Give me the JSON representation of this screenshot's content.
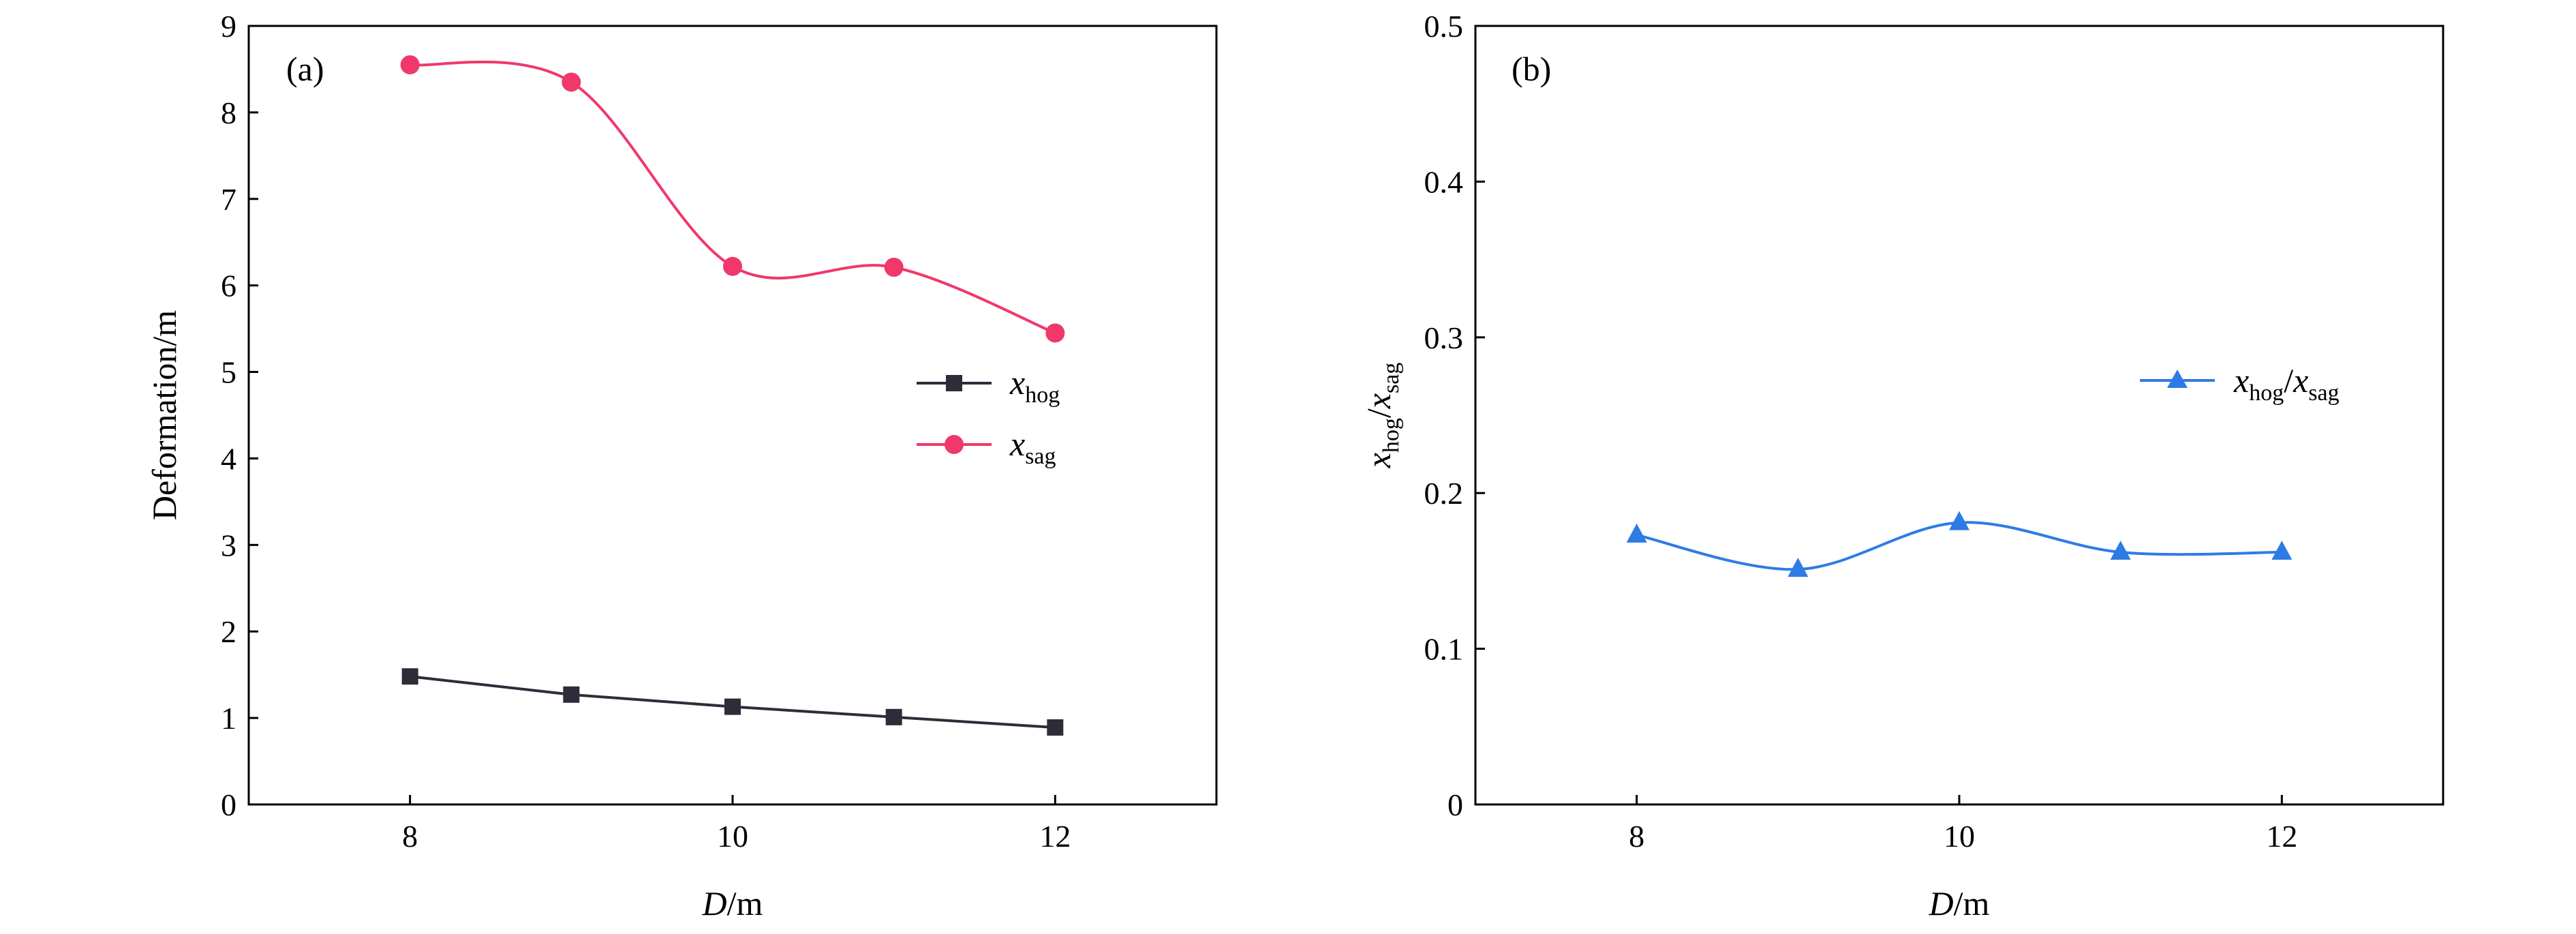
{
  "chart_data": [
    {
      "type": "line",
      "panel_label": "(a)",
      "xlabel": {
        "italic": "D",
        "rest": "/m"
      },
      "ylabel": "Deformation/m",
      "x": [
        8,
        9,
        10,
        11,
        12
      ],
      "xlim": [
        7,
        13
      ],
      "xticks": [
        8,
        10,
        12
      ],
      "ylim": [
        0,
        9
      ],
      "yticks": [
        0,
        1,
        2,
        3,
        4,
        5,
        6,
        7,
        8,
        9
      ],
      "grid": false,
      "legend_position": "right-middle",
      "series": [
        {
          "name": {
            "base": "x",
            "sub": "hog"
          },
          "values": [
            1.48,
            1.27,
            1.13,
            1.01,
            0.89
          ],
          "color": "#2d2d3a",
          "marker": "square",
          "curve": "linear"
        },
        {
          "name": {
            "base": "x",
            "sub": "sag"
          },
          "values": [
            8.55,
            8.35,
            6.22,
            6.21,
            5.45
          ],
          "color": "#f0386b",
          "marker": "circle",
          "curve": "smooth"
        }
      ]
    },
    {
      "type": "line",
      "panel_label": "(b)",
      "xlabel": {
        "italic": "D",
        "rest": "/m"
      },
      "ylabel": {
        "num": "x",
        "num_sub": "hog",
        "den": "x",
        "den_sub": "sag"
      },
      "x": [
        8,
        9,
        10,
        11,
        12
      ],
      "xlim": [
        7,
        13
      ],
      "xticks": [
        8,
        10,
        12
      ],
      "ylim": [
        0,
        0.5
      ],
      "yticks": [
        "0",
        "0.1",
        "0.2",
        "0.3",
        "0.4",
        "0.5"
      ],
      "grid": false,
      "legend_position": "right-upper",
      "series": [
        {
          "name": {
            "num": "x",
            "num_sub": "hog",
            "den": "x",
            "den_sub": "sag"
          },
          "values": [
            0.173,
            0.151,
            0.181,
            0.162,
            0.162
          ],
          "color": "#2e7be6",
          "marker": "triangle",
          "curve": "smooth"
        }
      ]
    }
  ]
}
